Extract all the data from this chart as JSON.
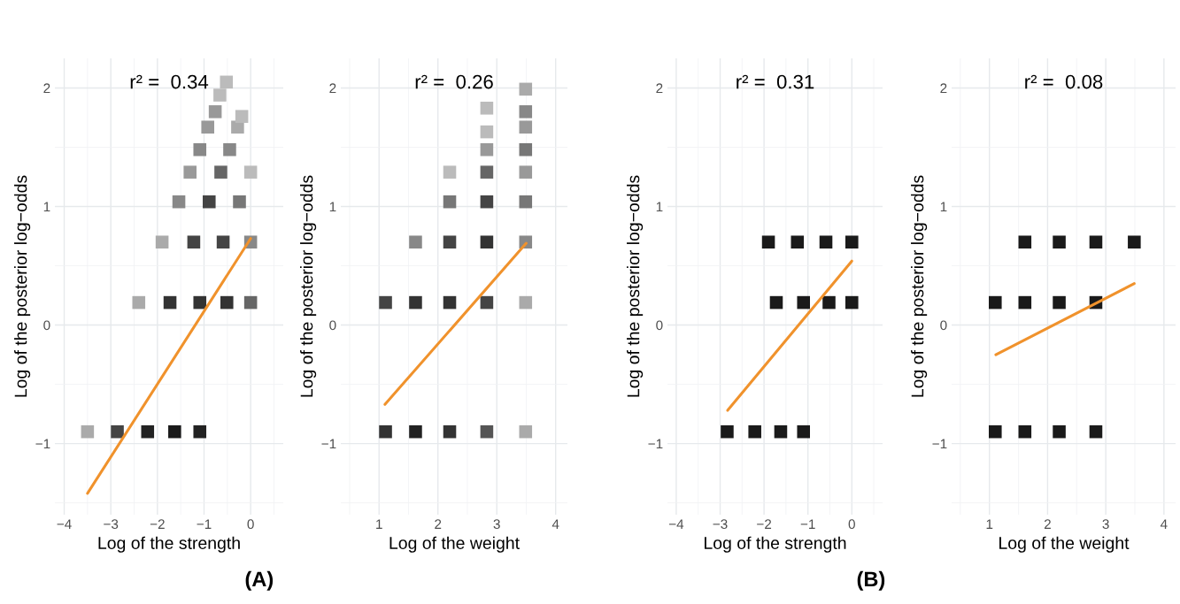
{
  "chart_data": [
    {
      "type": "scatter",
      "title": "r² =  0.34",
      "xlabel": "Log of the strength",
      "ylabel": "Log of the posterior log−odds",
      "xlim": [
        -4.2,
        0.7
      ],
      "ylim": [
        -1.6,
        2.25
      ],
      "xticks": [
        -4,
        -3,
        -2,
        -1,
        0
      ],
      "yticks": [
        -1,
        0,
        1,
        2
      ],
      "grid": true,
      "series": [
        {
          "marker": "square",
          "x": [
            -3.5,
            -2.86,
            -2.21,
            -1.63,
            -1.09,
            -2.4,
            -1.73,
            -1.09,
            -0.51,
            0,
            -1.9,
            -1.22,
            -0.59,
            0,
            -1.54,
            -0.89,
            -0.24,
            -1.3,
            -0.64,
            0,
            -1.09,
            -0.45,
            -0.92,
            -0.28,
            -0.76,
            -0.19,
            -0.66,
            -0.52
          ],
          "values": [
            -0.9,
            -0.9,
            -0.9,
            -0.9,
            -0.9,
            0.19,
            0.19,
            0.19,
            0.19,
            0.19,
            0.7,
            0.7,
            0.7,
            0.7,
            1.04,
            1.04,
            1.04,
            1.29,
            1.29,
            1.29,
            1.48,
            1.48,
            1.67,
            1.67,
            1.8,
            1.76,
            1.94,
            2.05
          ],
          "colors": [
            "#aaaaaa",
            "#444444",
            "#222222",
            "#1a1a1a",
            "#222222",
            "#aaaaaa",
            "#333333",
            "#333333",
            "#333333",
            "#666666",
            "#aaaaaa",
            "#444444",
            "#444444",
            "#888888",
            "#888888",
            "#444444",
            "#777777",
            "#999999",
            "#666666",
            "#bbbbbb",
            "#888888",
            "#888888",
            "#999999",
            "#aaaaaa",
            "#999999",
            "#bbbbbb",
            "#bbbbbb",
            "#bbbbbb"
          ]
        },
        {
          "type": "line",
          "color": "#f0922c",
          "x": [
            -3.5,
            0
          ],
          "values": [
            -1.42,
            0.73
          ]
        }
      ]
    },
    {
      "type": "scatter",
      "title": "r² =  0.26",
      "xlabel": "Log of the weight",
      "ylabel": "Log of the posterior log−odds",
      "annotations": [
        "(A)"
      ],
      "xlim": [
        0.35,
        4.2
      ],
      "ylim": [
        -1.6,
        2.25
      ],
      "xticks": [
        1,
        2,
        3,
        4
      ],
      "yticks": [
        -1,
        0,
        1,
        2
      ],
      "grid": true,
      "series": [
        {
          "marker": "square",
          "x": [
            1.11,
            1.62,
            2.2,
            2.83,
            3.49,
            1.11,
            1.62,
            2.2,
            2.83,
            3.49,
            1.62,
            2.2,
            2.83,
            3.49,
            2.2,
            2.83,
            3.49,
            2.2,
            2.83,
            3.49,
            2.83,
            3.49,
            2.83,
            3.49,
            2.83,
            3.49,
            3.49
          ],
          "values": [
            -0.9,
            -0.9,
            -0.9,
            -0.9,
            -0.9,
            0.19,
            0.19,
            0.19,
            0.19,
            0.19,
            0.7,
            0.7,
            0.7,
            0.7,
            1.04,
            1.04,
            1.04,
            1.29,
            1.29,
            1.29,
            1.48,
            1.48,
            1.63,
            1.67,
            1.83,
            1.8,
            1.99
          ],
          "colors": [
            "#333333",
            "#222222",
            "#333333",
            "#555555",
            "#aaaaaa",
            "#444444",
            "#333333",
            "#333333",
            "#444444",
            "#aaaaaa",
            "#888888",
            "#444444",
            "#333333",
            "#888888",
            "#777777",
            "#444444",
            "#777777",
            "#bbbbbb",
            "#666666",
            "#999999",
            "#999999",
            "#777777",
            "#bbbbbb",
            "#999999",
            "#bbbbbb",
            "#888888",
            "#aaaaaa"
          ]
        },
        {
          "type": "line",
          "color": "#f0922c",
          "x": [
            1.1,
            3.5
          ],
          "values": [
            -0.67,
            0.69
          ]
        }
      ]
    },
    {
      "type": "scatter",
      "title": "r² =  0.31",
      "xlabel": "Log of the strength",
      "ylabel": "Log of the posterior log−odds",
      "xlim": [
        -4.2,
        0.7
      ],
      "ylim": [
        -1.6,
        2.25
      ],
      "xticks": [
        -4,
        -3,
        -2,
        -1,
        0
      ],
      "yticks": [
        -1,
        0,
        1,
        2
      ],
      "grid": true,
      "series": [
        {
          "marker": "square",
          "x": [
            -2.84,
            -2.21,
            -1.62,
            -1.1,
            -1.72,
            -1.1,
            -0.52,
            0,
            -1.9,
            -1.24,
            -0.59,
            0
          ],
          "values": [
            -0.9,
            -0.9,
            -0.9,
            -0.9,
            0.19,
            0.19,
            0.19,
            0.19,
            0.7,
            0.7,
            0.7,
            0.7
          ],
          "color": "#1a1a1a"
        },
        {
          "type": "line",
          "color": "#f0922c",
          "x": [
            -2.83,
            0
          ],
          "values": [
            -0.72,
            0.54
          ]
        }
      ]
    },
    {
      "type": "scatter",
      "title": "r² =  0.08",
      "xlabel": "Log of the weight",
      "ylabel": "Log of the posterior log−odds",
      "annotations": [
        "(B)"
      ],
      "xlim": [
        0.35,
        4.2
      ],
      "ylim": [
        -1.6,
        2.25
      ],
      "xticks": [
        1,
        2,
        3,
        4
      ],
      "yticks": [
        -1,
        0,
        1,
        2
      ],
      "grid": true,
      "series": [
        {
          "marker": "square",
          "x": [
            1.1,
            1.61,
            2.2,
            2.83,
            1.1,
            1.61,
            2.2,
            2.83,
            1.61,
            2.2,
            2.83,
            3.49
          ],
          "values": [
            -0.9,
            -0.9,
            -0.9,
            -0.9,
            0.19,
            0.19,
            0.19,
            0.19,
            0.7,
            0.7,
            0.7,
            0.7
          ],
          "color": "#1a1a1a"
        },
        {
          "type": "line",
          "color": "#f0922c",
          "x": [
            1.11,
            3.49
          ],
          "values": [
            -0.25,
            0.35
          ]
        }
      ]
    }
  ]
}
